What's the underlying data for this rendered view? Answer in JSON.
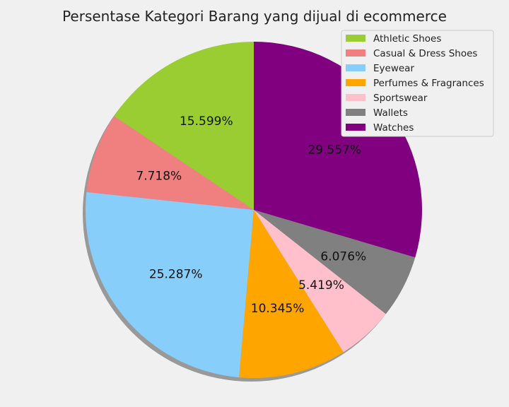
{
  "chart_data": {
    "type": "pie",
    "title": "Persentase Kategori Barang yang dijual di ecommerce",
    "legend_position": "top-right",
    "shadow": true,
    "start_angle_deg": 90,
    "direction": "counterclockwise",
    "slices": [
      {
        "label": "Athletic Shoes",
        "value": 15.599,
        "value_label": "15.599%",
        "color": "#9acd32"
      },
      {
        "label": "Casual & Dress Shoes",
        "value": 7.718,
        "value_label": "7.718%",
        "color": "#f08080"
      },
      {
        "label": "Eyewear",
        "value": 25.287,
        "value_label": "25.287%",
        "color": "#87cefa"
      },
      {
        "label": "Perfumes & Fragrances",
        "value": 10.345,
        "value_label": "10.345%",
        "color": "#ffa500"
      },
      {
        "label": "Sportswear",
        "value": 5.419,
        "value_label": "5.419%",
        "color": "#ffc0cb"
      },
      {
        "label": "Wallets",
        "value": 6.076,
        "value_label": "6.076%",
        "color": "#808080"
      },
      {
        "label": "Watches",
        "value": 29.557,
        "value_label": "29.557%",
        "color": "#800080"
      }
    ]
  }
}
